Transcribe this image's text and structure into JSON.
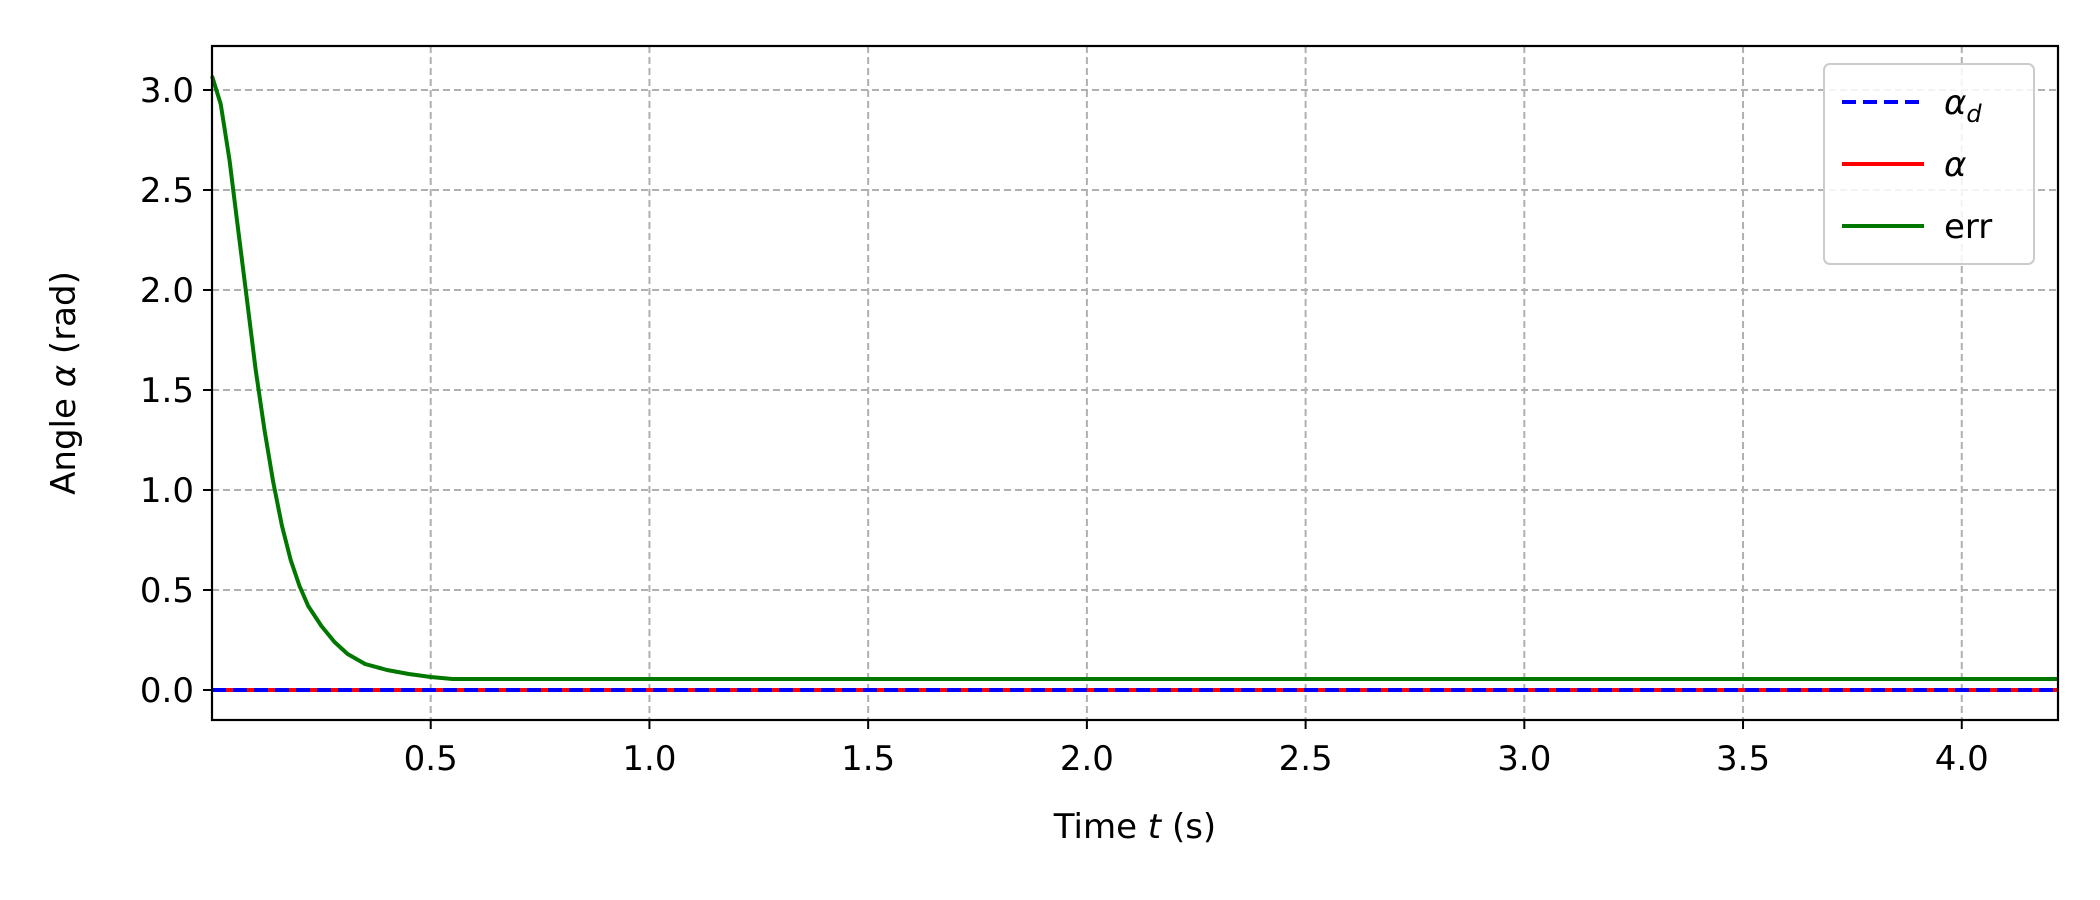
{
  "chart_data": {
    "type": "line",
    "xlabel": {
      "prefix": "Time ",
      "var": "t",
      "suffix": " (s)"
    },
    "ylabel": {
      "prefix": "Angle ",
      "var": "α",
      "suffix": " (rad)"
    },
    "xlim": [
      0.0,
      4.22
    ],
    "ylim": [
      -0.15,
      3.22
    ],
    "xticks": [
      0.5,
      1.0,
      1.5,
      2.0,
      2.5,
      3.0,
      3.5,
      4.0
    ],
    "xtick_labels": [
      "0.5",
      "1.0",
      "1.5",
      "2.0",
      "2.5",
      "3.0",
      "3.5",
      "4.0"
    ],
    "yticks": [
      0.0,
      0.5,
      1.0,
      1.5,
      2.0,
      2.5,
      3.0
    ],
    "ytick_labels": [
      "0.0",
      "0.5",
      "1.0",
      "1.5",
      "2.0",
      "2.5",
      "3.0"
    ],
    "grid": true,
    "legend_position": "top-right",
    "series": [
      {
        "name": "α_d",
        "color": "#0000ff",
        "style": "dashed",
        "x": [
          0.0,
          4.22
        ],
        "y": [
          0.0,
          0.0
        ]
      },
      {
        "name": "α",
        "color": "#ff0000",
        "style": "solid",
        "x": [
          0.0,
          4.22
        ],
        "y": [
          0.0,
          0.0
        ]
      },
      {
        "name": "err",
        "color": "#007800",
        "style": "solid",
        "x": [
          0.0,
          0.02,
          0.04,
          0.06,
          0.08,
          0.1,
          0.12,
          0.14,
          0.16,
          0.18,
          0.2,
          0.22,
          0.25,
          0.28,
          0.31,
          0.35,
          0.4,
          0.45,
          0.5,
          0.55,
          0.6,
          1.0,
          2.0,
          3.0,
          4.0,
          4.22
        ],
        "y": [
          3.07,
          2.93,
          2.65,
          2.3,
          1.95,
          1.6,
          1.3,
          1.04,
          0.82,
          0.65,
          0.52,
          0.42,
          0.32,
          0.24,
          0.18,
          0.13,
          0.1,
          0.08,
          0.065,
          0.055,
          0.055,
          0.055,
          0.055,
          0.055,
          0.055,
          0.055
        ]
      }
    ]
  }
}
